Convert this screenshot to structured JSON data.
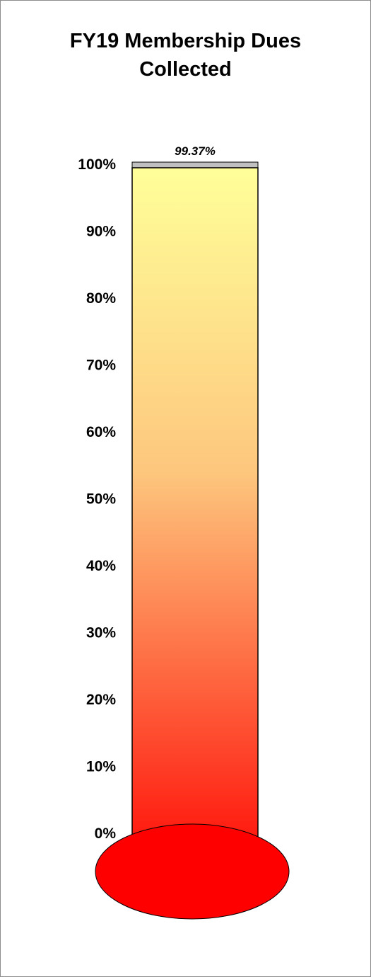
{
  "chart_data": {
    "type": "bar",
    "title_lines": [
      "FY19 Membership Dues",
      "Collected"
    ],
    "categories": [
      ""
    ],
    "values": [
      99.37
    ],
    "value_label": "99.37%",
    "ylim": [
      0,
      100
    ],
    "yticks": [
      0,
      10,
      20,
      30,
      40,
      50,
      60,
      70,
      80,
      90,
      100
    ],
    "ytick_labels": [
      "0%",
      "10%",
      "20%",
      "30%",
      "40%",
      "50%",
      "60%",
      "70%",
      "80%",
      "90%",
      "100%"
    ],
    "grid": false,
    "legend": "none"
  },
  "colors": {
    "fill_top": "#ffff99",
    "fill_mid": "#fdc77e",
    "fill_bottom": "#ff1a0f",
    "bulb": "#ff0000",
    "tube_empty": "#c0c0c0",
    "outline": "#000000"
  }
}
